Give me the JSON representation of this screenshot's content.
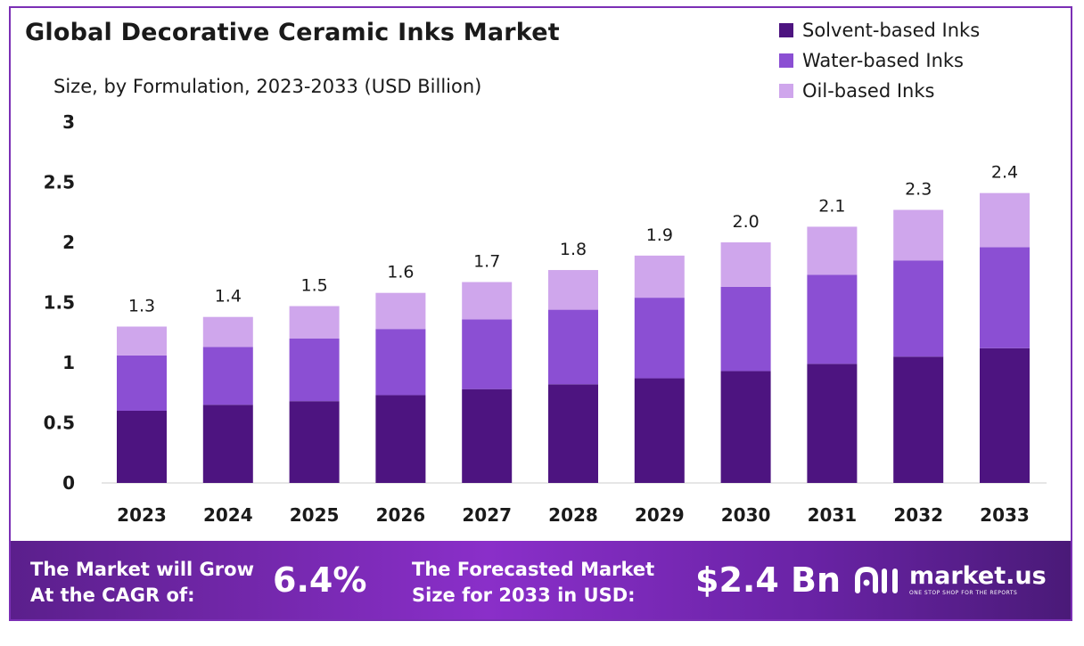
{
  "header": {
    "title": "Global Decorative Ceramic Inks Market",
    "subtitle": "Size, by Formulation, 2023-2033 (USD Billion)"
  },
  "colors": {
    "solvent": "#4d1480",
    "water": "#8b4fd3",
    "oil": "#cfa6ec",
    "frame": "#7b2fb5"
  },
  "chart_data": {
    "type": "bar",
    "stacked": true,
    "categories": [
      "2023",
      "2024",
      "2025",
      "2026",
      "2027",
      "2028",
      "2029",
      "2030",
      "2031",
      "2032",
      "2033"
    ],
    "series": [
      {
        "name": "Solvent-based Inks",
        "values": [
          0.6,
          0.65,
          0.68,
          0.73,
          0.78,
          0.82,
          0.87,
          0.93,
          0.99,
          1.05,
          1.12
        ],
        "color": "#4d1480"
      },
      {
        "name": "Water-based Inks",
        "values": [
          0.46,
          0.48,
          0.52,
          0.55,
          0.58,
          0.62,
          0.67,
          0.7,
          0.74,
          0.8,
          0.84
        ],
        "color": "#8b4fd3"
      },
      {
        "name": "Oil-based Inks",
        "values": [
          0.24,
          0.25,
          0.27,
          0.3,
          0.31,
          0.33,
          0.35,
          0.37,
          0.4,
          0.42,
          0.45
        ],
        "color": "#cfa6ec"
      }
    ],
    "totals": [
      "1.3",
      "1.4",
      "1.5",
      "1.6",
      "1.7",
      "1.8",
      "1.9",
      "2.0",
      "2.1",
      "2.3",
      "2.4"
    ],
    "yticks": [
      "0",
      "0.5",
      "1",
      "1.5",
      "2",
      "2.5",
      "3"
    ],
    "ylim": [
      0,
      3
    ],
    "grid": false,
    "legend": "top-right"
  },
  "banner": {
    "cagr_label_line1": "The Market will Grow",
    "cagr_label_line2": "At the CAGR of:",
    "cagr_value": "6.4%",
    "forecast_label_line1": "The Forecasted Market",
    "forecast_label_line2": "Size for 2033 in USD:",
    "forecast_value": "$2.4 Bn",
    "brand_name": "market.us",
    "brand_tagline": "ONE STOP SHOP FOR THE REPORTS"
  }
}
